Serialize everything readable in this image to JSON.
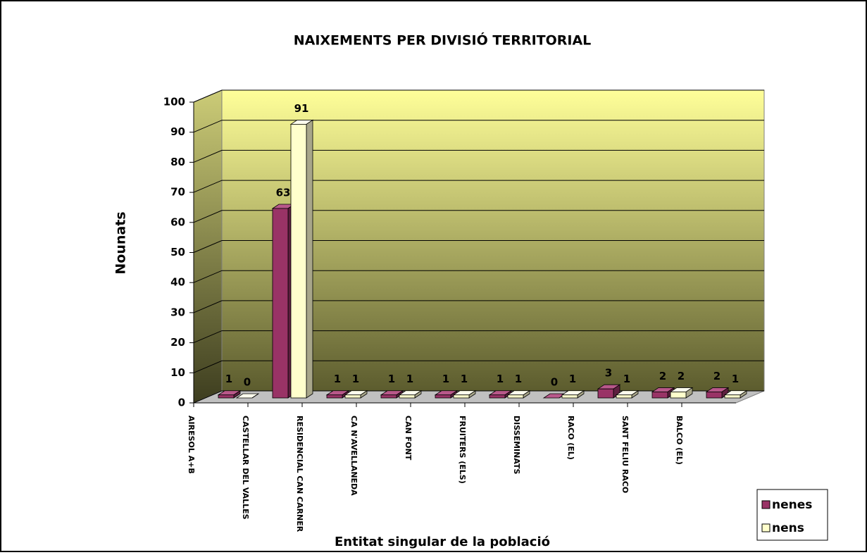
{
  "chart_data": {
    "type": "bar3d",
    "title": "NAIXEMENTS PER DIVISIÓ TERRITORIAL",
    "y_label": "Nounats",
    "x_label": "Entitat singular de la població",
    "categories": [
      "AIRESOL A+B",
      "CASTELLAR DEL VALLES",
      "RESIDENCIAL CAN CARNER",
      "CA N'AVELLANEDA",
      "CAN FONT",
      "FRUITERS (ELS)",
      "DISSEMINATS",
      "RACO (EL)",
      "SANT FELIU RACO",
      "BALCO (EL)"
    ],
    "series": [
      {
        "name": "nenes",
        "color": "#993366",
        "values": [
          1,
          63,
          1,
          1,
          1,
          1,
          0,
          3,
          2,
          2
        ]
      },
      {
        "name": "nens",
        "color": "#ffffcc",
        "values": [
          0,
          91,
          1,
          1,
          1,
          1,
          1,
          1,
          2,
          1
        ]
      }
    ],
    "ylim": [
      0,
      100
    ],
    "yticks": [
      0,
      10,
      20,
      30,
      40,
      50,
      60,
      70,
      80,
      90,
      100
    ],
    "grid": true,
    "legend": "bottom-right"
  }
}
